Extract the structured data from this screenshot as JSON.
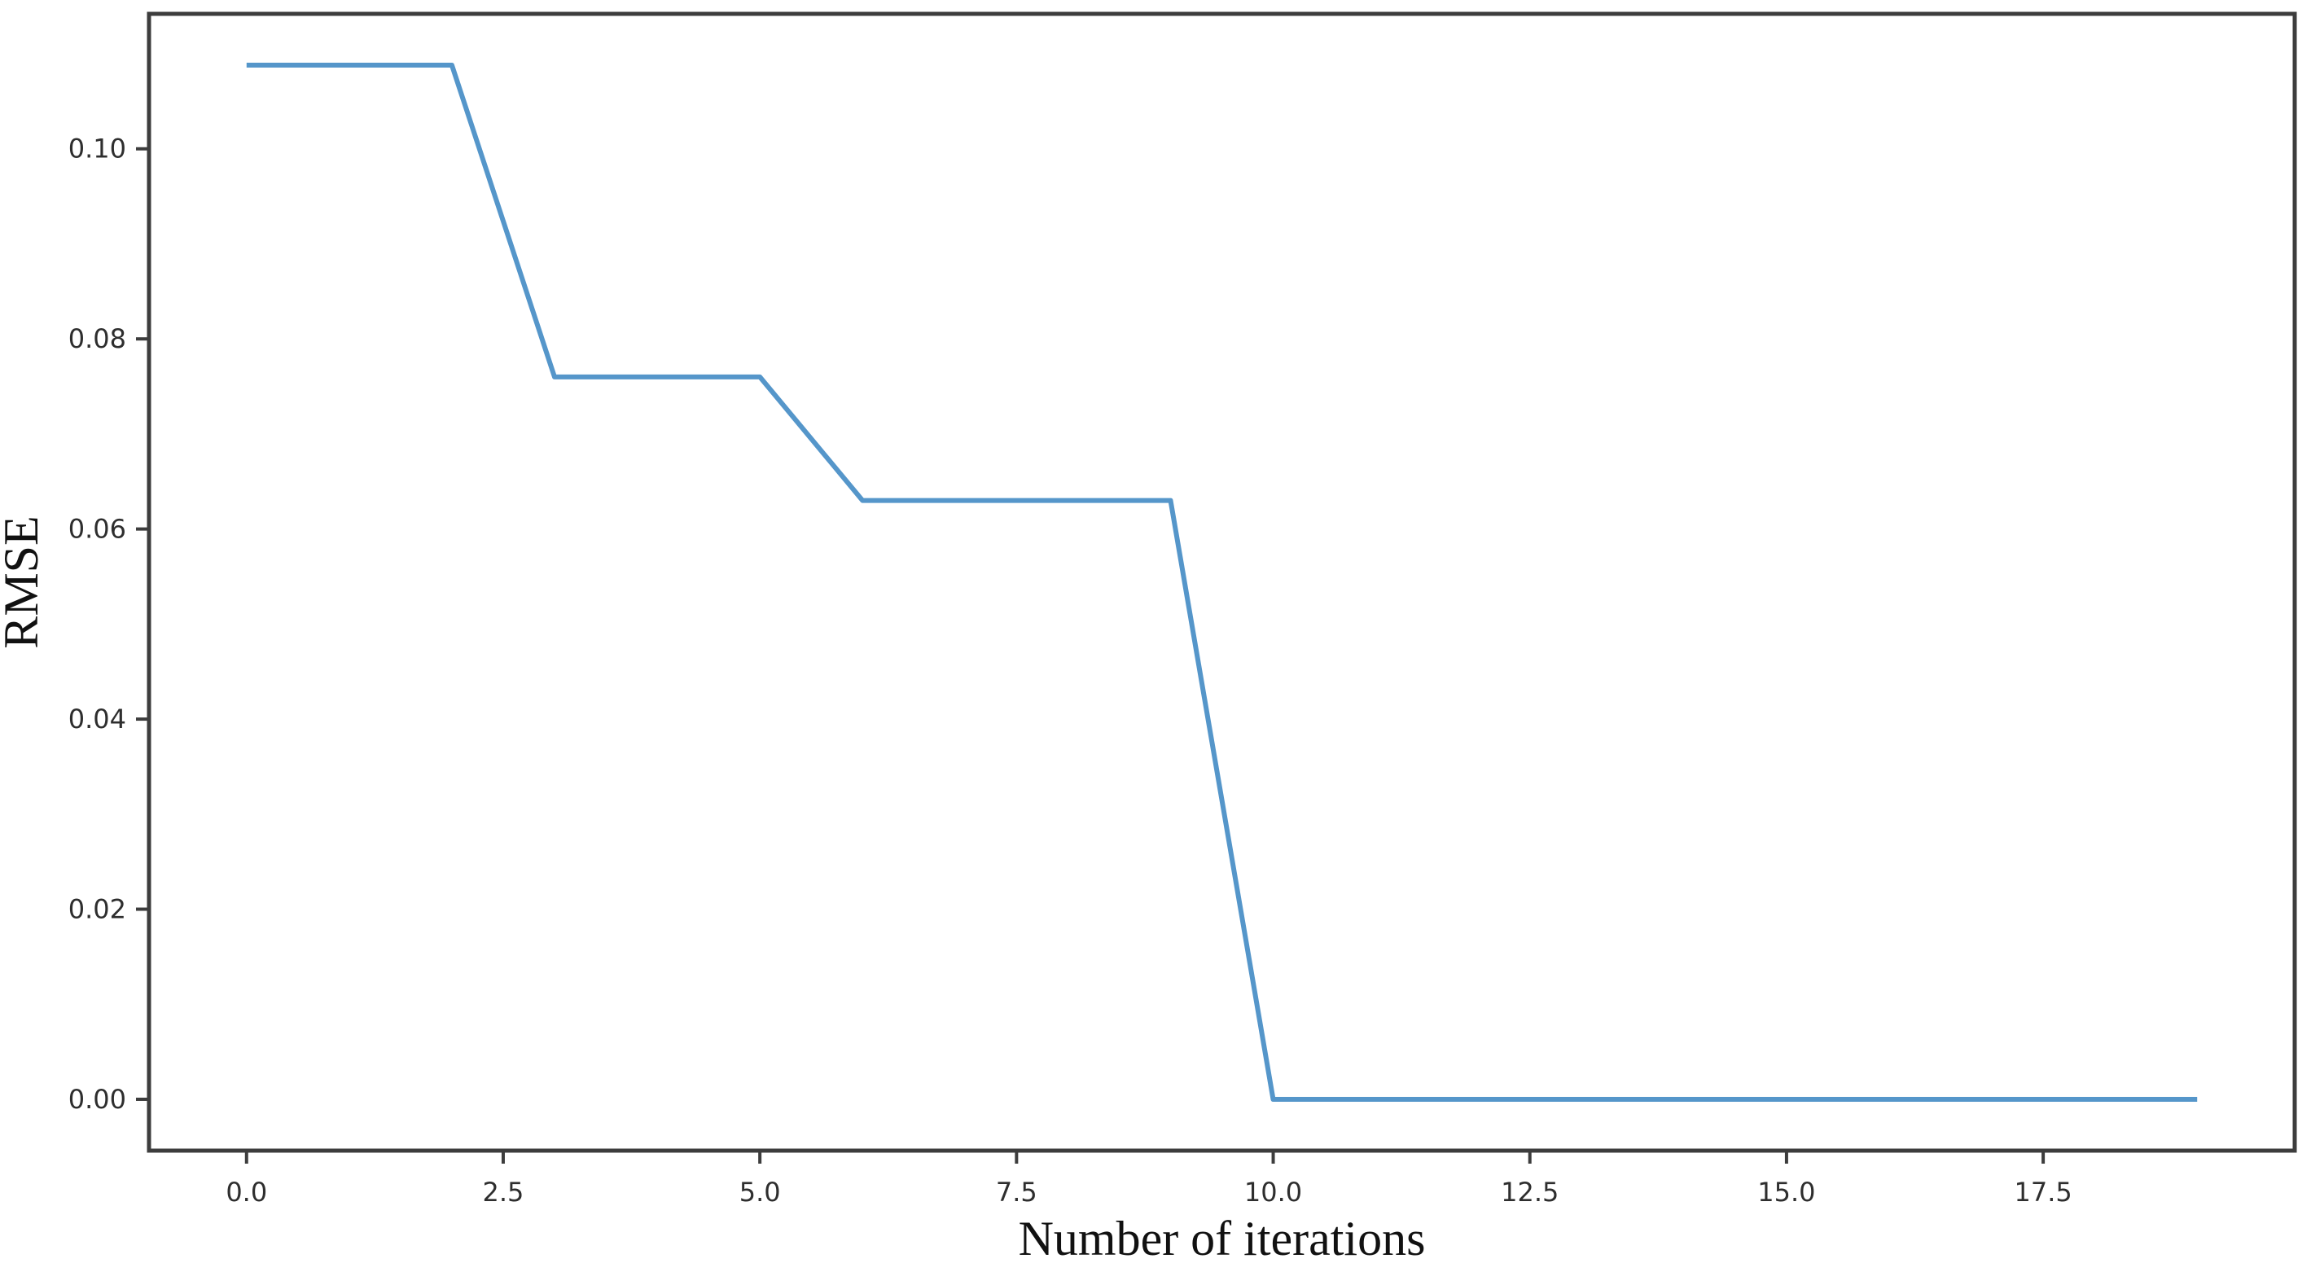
{
  "figure": {
    "background": "#ffffff",
    "spine_color": "#3d3d3d",
    "tick_mark_color": "#3d3d3d",
    "tick_label_color": "#2e2e2e",
    "axis_label_color": "#111111"
  },
  "chart_data": {
    "type": "line",
    "title": "",
    "xlabel": "Number of iterations",
    "ylabel": "RMSE",
    "x": [
      0,
      1,
      2,
      3,
      4,
      5,
      6,
      7,
      8,
      9,
      10,
      11,
      12,
      13,
      14,
      15,
      16,
      17,
      18,
      19
    ],
    "series": [
      {
        "name": "RMSE",
        "color": "#5596ca",
        "values": [
          0.1088,
          0.1088,
          0.1088,
          0.076,
          0.076,
          0.076,
          0.063,
          0.063,
          0.063,
          0.063,
          0.0,
          0.0,
          0.0,
          0.0,
          0.0,
          0.0,
          0.0,
          0.0,
          0.0,
          0.0
        ]
      }
    ],
    "xlim": [
      -0.95,
      19.95
    ],
    "ylim": [
      -0.0054,
      0.1142
    ],
    "xticks": {
      "values": [
        0,
        2.5,
        5,
        7.5,
        10,
        12.5,
        15,
        17.5
      ],
      "labels": [
        "0.0",
        "2.5",
        "5.0",
        "7.5",
        "10.0",
        "12.5",
        "15.0",
        "17.5"
      ]
    },
    "yticks": {
      "values": [
        0,
        0.02,
        0.04,
        0.06,
        0.08,
        0.1
      ],
      "labels": [
        "0.00",
        "0.02",
        "0.04",
        "0.06",
        "0.08",
        "0.10"
      ]
    },
    "grid": false,
    "legend_position": "none",
    "spines": [
      "top",
      "right",
      "bottom",
      "left"
    ]
  }
}
